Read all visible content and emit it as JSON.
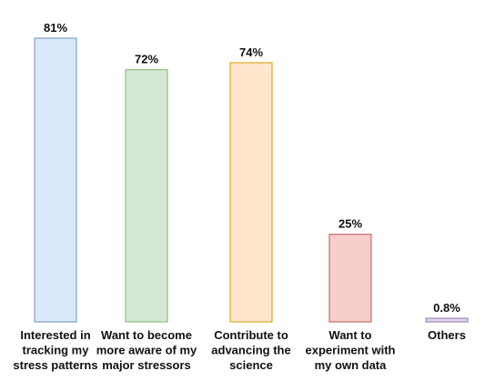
{
  "chart_data": {
    "type": "bar",
    "title": "",
    "xlabel": "",
    "ylabel": "",
    "ylim": [
      0,
      81
    ],
    "grid": false,
    "legend": "none",
    "categories": [
      "Interested in tracking my stress patterns",
      "Want to become more aware of my major stressors",
      "Contribute to advancing the science",
      "Want to experiment with my own data",
      "Others"
    ],
    "category_lines": [
      [
        "Interested in",
        "tracking my",
        "stress patterns"
      ],
      [
        "Want to become",
        "more aware of my",
        "major stressors"
      ],
      [
        "Contribute to",
        "advancing the",
        "science"
      ],
      [
        "Want to",
        "experiment with",
        "my own data"
      ],
      [
        "Others"
      ]
    ],
    "values": [
      81,
      72,
      74,
      25,
      0.8
    ],
    "value_labels": [
      "81%",
      "72%",
      "74%",
      "25%",
      "0.8%"
    ],
    "colors": [
      {
        "fill": "#dae8fc",
        "stroke": "#6c8ebf"
      },
      {
        "fill": "#d5e8d4",
        "stroke": "#82b366"
      },
      {
        "fill": "#ffe6cc",
        "stroke": "#d79b00"
      },
      {
        "fill": "#f8cecc",
        "stroke": "#b85450"
      },
      {
        "fill": "#e1d5e7",
        "stroke": "#9673a6"
      }
    ]
  }
}
